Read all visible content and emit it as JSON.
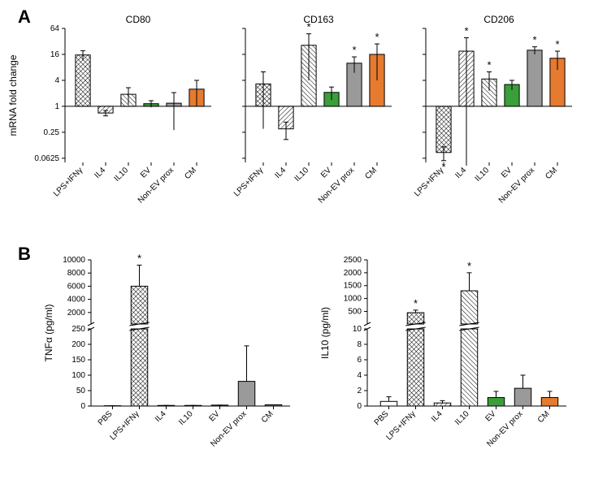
{
  "figure": {
    "panel_label_fontsize": 22,
    "panel_label_weight": "bold",
    "panelA": {
      "label": "A",
      "ylabel": "mRNA fold change",
      "categories": [
        "LPS+IFNγ",
        "IL4",
        "IL10",
        "EV",
        "Non-EV prox",
        "CM"
      ],
      "y_ticks": [
        0.0625,
        0.25,
        1,
        4,
        16,
        64
      ],
      "y_tick_labels": [
        "0.0625",
        "0.25",
        "1",
        "4",
        "16",
        "64"
      ],
      "y_range": [
        0.05,
        64
      ],
      "charts": [
        {
          "title": "CD80",
          "values": [
            15.5,
            0.7,
            1.9,
            1.15,
            1.18,
            2.5
          ],
          "err": [
            4.0,
            0.1,
            0.8,
            0.2,
            0.9,
            1.5
          ],
          "stars": [
            false,
            false,
            false,
            false,
            false,
            false
          ]
        },
        {
          "title": "CD163",
          "values": [
            3.3,
            0.3,
            26,
            2.1,
            10,
            16
          ],
          "err": [
            3.0,
            0.13,
            22,
            0.7,
            4,
            12
          ],
          "stars": [
            false,
            false,
            true,
            false,
            true,
            true
          ]
        },
        {
          "title": "CD206",
          "values": [
            0.085,
            19,
            4.3,
            3.2,
            20,
            13
          ],
          "err": [
            0.03,
            20,
            2.0,
            0.8,
            4,
            6
          ],
          "stars": [
            true,
            true,
            true,
            false,
            true,
            true
          ]
        }
      ]
    },
    "panelB": {
      "label": "B",
      "categories": [
        "PBS",
        "LPS+IFNγ",
        "IL4",
        "IL10",
        "EV",
        "Non-EV prox",
        "CM"
      ],
      "charts": [
        {
          "ylabel": "TNFα (pg/ml)",
          "break_low": 250,
          "break_high": 250,
          "low_range": [
            0,
            250
          ],
          "high_range": [
            250,
            10000
          ],
          "low_ticks": [
            0,
            50,
            100,
            150,
            200,
            250
          ],
          "high_ticks": [
            2000,
            4000,
            6000,
            8000,
            10000
          ],
          "values": [
            1,
            6000,
            2,
            2,
            3,
            80,
            4
          ],
          "err": [
            0,
            3200,
            0,
            0,
            0,
            115,
            0
          ],
          "stars": [
            false,
            true,
            false,
            false,
            false,
            false,
            false
          ]
        },
        {
          "ylabel": "IL10 (pg/ml)",
          "break_low": 10,
          "break_high": 10,
          "low_range": [
            0,
            10
          ],
          "high_range": [
            10,
            2500
          ],
          "low_ticks": [
            0,
            2,
            4,
            6,
            8,
            10
          ],
          "high_ticks": [
            500,
            1000,
            1500,
            2000,
            2500
          ],
          "values": [
            0.6,
            450,
            0.4,
            1300,
            1.1,
            2.3,
            1.1
          ],
          "err": [
            0.6,
            100,
            0.3,
            700,
            0.8,
            1.7,
            0.8
          ],
          "stars": [
            false,
            true,
            false,
            true,
            false,
            false,
            false
          ]
        }
      ]
    },
    "colors": {
      "black": "#000000",
      "green": "#3a9e3a",
      "grey": "#9a9a9a",
      "orange": "#e67a2e",
      "white": "#ffffff",
      "bg": "#ffffff"
    },
    "title_fontsize": 12,
    "axis_label_fontsize": 12,
    "tick_fontsize": 10,
    "star_fontsize": 13
  }
}
